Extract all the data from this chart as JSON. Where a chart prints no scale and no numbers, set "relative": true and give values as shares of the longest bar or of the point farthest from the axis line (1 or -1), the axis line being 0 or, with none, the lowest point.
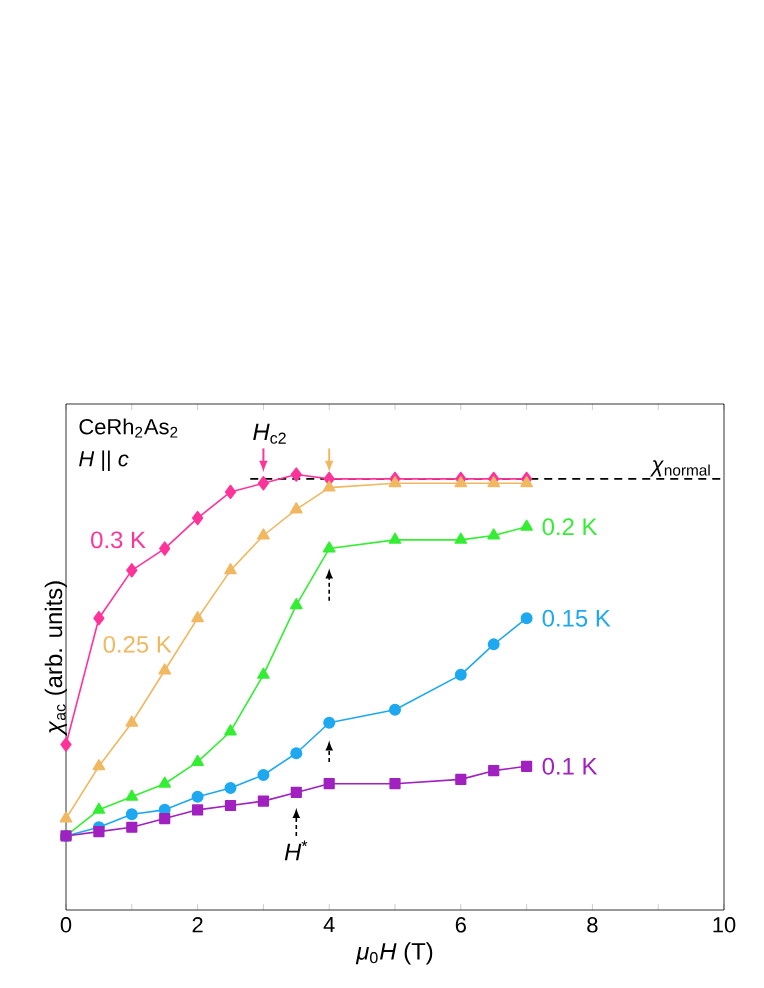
{
  "chart_data": {
    "type": "line",
    "relative": true,
    "xlabel": "*μ*$_{0}$*H* (T)",
    "ylabel": "*χ*$_{ac}$ (arb. units)",
    "x": [
      0,
      0.5,
      1,
      1.5,
      2,
      2.5,
      3,
      3.5,
      4,
      5,
      6,
      6.5,
      7
    ],
    "xlim": [
      0,
      10
    ],
    "xticks": [
      0,
      {
        "value": 1,
        "label": null
      },
      2,
      {
        "value": 3,
        "label": null
      },
      4,
      {
        "value": 5,
        "label": null
      },
      6,
      {
        "value": 7,
        "label": null
      },
      8,
      {
        "value": 9,
        "label": null
      },
      10
    ],
    "series": [
      {
        "name": "0.3 K",
        "color": "#ff3399",
        "marker": "diamond",
        "values": [
          0.38,
          0.67,
          0.78,
          0.83,
          0.9,
          0.96,
          0.98,
          1.0,
          0.99,
          0.99,
          0.99,
          0.99,
          0.99
        ]
      },
      {
        "name": "0.25 K",
        "color": "#f0b860",
        "marker": "triangle",
        "values": [
          0.21,
          0.33,
          0.43,
          0.55,
          0.67,
          0.78,
          0.86,
          0.92,
          0.97,
          0.98,
          0.98,
          0.98,
          0.98
        ]
      },
      {
        "name": "0.2 K",
        "color": "#33ee33",
        "marker": "triangle",
        "values": [
          0.17,
          0.23,
          0.26,
          0.29,
          0.34,
          0.41,
          0.54,
          0.7,
          0.83,
          0.85,
          0.85,
          0.86,
          0.88
        ]
      },
      {
        "name": "0.15 K",
        "color": "#1ea8f0",
        "marker": "circle",
        "values": [
          0.17,
          0.19,
          0.22,
          0.23,
          0.26,
          0.28,
          0.31,
          0.36,
          0.43,
          0.46,
          0.54,
          0.61,
          0.67
        ]
      },
      {
        "name": "0.1 K",
        "color": "#a020c0",
        "marker": "square",
        "values": [
          0.17,
          0.18,
          0.19,
          0.21,
          0.23,
          0.24,
          0.25,
          0.27,
          0.29,
          0.29,
          0.3,
          0.32,
          0.33
        ]
      }
    ],
    "ref_lines": [
      {
        "axis": "y",
        "value": 0.99,
        "label": "*χ*$_{normal}$",
        "color": "#000000",
        "line_style": "dashed"
      }
    ],
    "annotations": [
      "CeRh$_{2}$As$_{2}$",
      "*H* || *c*",
      {
        "text": "*H*$_{c2}$",
        "x": 3,
        "y": 0.98
      },
      {
        "text": "*H*$^{*}$",
        "x": 3.5,
        "y": 0.27
      }
    ]
  }
}
